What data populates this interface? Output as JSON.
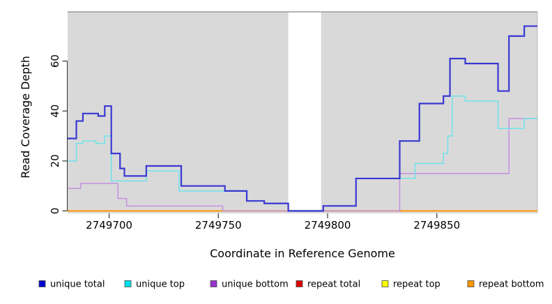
{
  "chart_data": {
    "type": "line",
    "subtype": "step-coverage-plot",
    "title": "",
    "xlabel": "Coordinate in Reference Genome",
    "ylabel": "Read Coverage Depth",
    "xlim": [
      2749681,
      2749896
    ],
    "ylim": [
      0,
      79.7
    ],
    "x_ticks": [
      2749700,
      2749750,
      2749800,
      2749850
    ],
    "y_ticks": [
      0,
      20,
      40,
      60
    ],
    "grid": "off",
    "plot_bg_color": "#d9d9d9",
    "masked_region": {
      "x_start": 2749782,
      "x_end": 2749797,
      "color": "#ffffff"
    },
    "legend_position": "bottom",
    "series": [
      {
        "name": "unique total",
        "color": "#3838d2",
        "legend_color": "#0008cc",
        "points": [
          [
            2749681,
            29
          ],
          [
            2749685,
            36
          ],
          [
            2749688,
            39
          ],
          [
            2749695,
            38
          ],
          [
            2749698,
            42
          ],
          [
            2749701,
            23
          ],
          [
            2749705,
            17
          ],
          [
            2749707,
            14
          ],
          [
            2749717,
            18
          ],
          [
            2749733,
            10
          ],
          [
            2749753,
            8
          ],
          [
            2749763,
            4
          ],
          [
            2749771,
            3
          ],
          [
            2749782,
            0
          ],
          [
            2749798,
            2
          ],
          [
            2749813,
            13
          ],
          [
            2749833,
            28
          ],
          [
            2749842,
            43
          ],
          [
            2749853,
            46
          ],
          [
            2749856,
            61
          ],
          [
            2749863,
            59
          ],
          [
            2749878,
            48
          ],
          [
            2749883,
            70
          ],
          [
            2749890,
            74
          ]
        ]
      },
      {
        "name": "unique top",
        "color": "#6fe3ea",
        "legend_color": "#00e0ee",
        "points": [
          [
            2749681,
            20
          ],
          [
            2749685,
            27
          ],
          [
            2749688,
            28
          ],
          [
            2749694,
            27
          ],
          [
            2749698,
            30
          ],
          [
            2749701,
            12
          ],
          [
            2749717,
            16
          ],
          [
            2749732,
            8
          ],
          [
            2749763,
            4
          ],
          [
            2749771,
            3
          ],
          [
            2749782,
            0
          ],
          [
            2749798,
            2
          ],
          [
            2749813,
            13
          ],
          [
            2749840,
            19
          ],
          [
            2749853,
            23
          ],
          [
            2749855,
            30
          ],
          [
            2749857,
            46
          ],
          [
            2749863,
            44
          ],
          [
            2749878,
            33
          ],
          [
            2749890,
            37
          ]
        ]
      },
      {
        "name": "unique bottom",
        "color": "#c48fe0",
        "legend_color": "#9932cc",
        "points": [
          [
            2749681,
            9
          ],
          [
            2749687,
            11
          ],
          [
            2749704,
            5
          ],
          [
            2749708,
            2
          ],
          [
            2749752,
            0
          ],
          [
            2749833,
            15
          ],
          [
            2749883,
            37
          ]
        ]
      },
      {
        "name": "repeat total",
        "color": "#dd0000",
        "legend_color": "#dd0000",
        "points": [
          [
            2749681,
            0
          ]
        ]
      },
      {
        "name": "repeat top",
        "color": "#ffff00",
        "legend_color": "#ffff00",
        "points": [
          [
            2749681,
            0
          ]
        ]
      },
      {
        "name": "repeat bottom",
        "color": "#ff9800",
        "legend_color": "#ff9800",
        "points": [
          [
            2749681,
            0
          ]
        ]
      }
    ]
  }
}
